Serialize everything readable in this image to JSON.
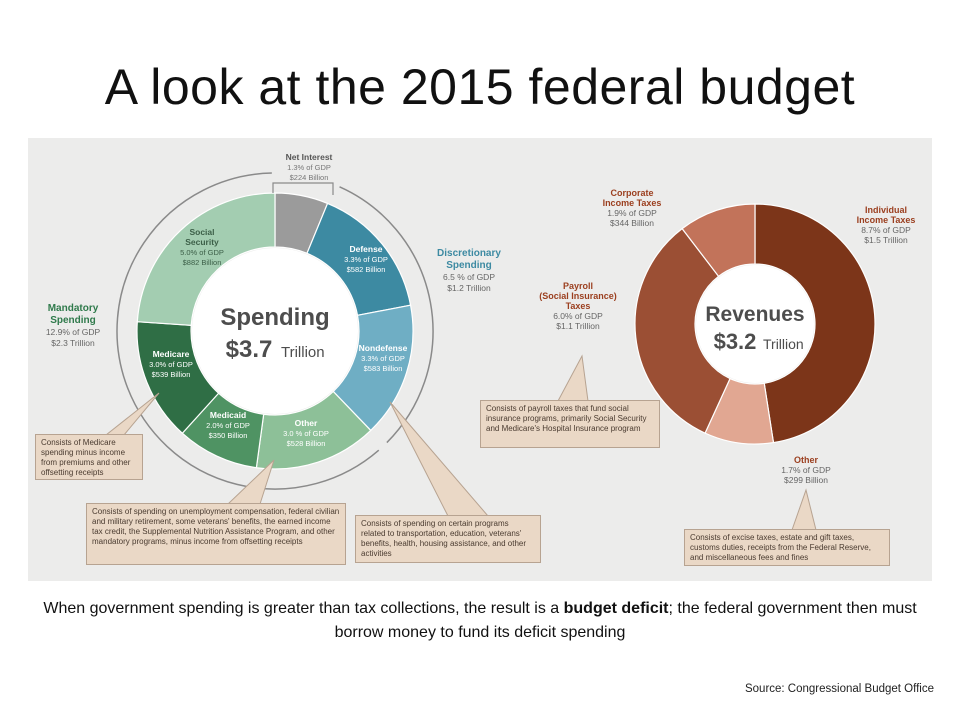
{
  "slide": {
    "title": "A look at the 2015 federal budget",
    "caption_before": "When government spending is greater than tax collections, the result is a ",
    "caption_bold1": "budget deficit",
    "caption_middle": "; the federal government then must borrow money to fund its deficit spending",
    "source": "Source: Congressional Budget Office"
  },
  "chart_data": [
    {
      "type": "pie",
      "center_title": "Spending",
      "center_amount": "$3.7",
      "center_unit": "Trillion",
      "unit": "% of GDP",
      "slices": [
        {
          "name": "Net Interest",
          "pct_gdp": 1.3,
          "line1": "1.3% of GDP",
          "line2": "$224 Billion",
          "color": "#9b9b9b"
        },
        {
          "name": "Defense",
          "pct_gdp": 3.3,
          "line1": "3.3% of GDP",
          "line2": "$582 Billion",
          "color": "#3d8aa2"
        },
        {
          "name": "Nondefense",
          "pct_gdp": 3.3,
          "line1": "3.3% of GDP",
          "line2": "$583 Billion",
          "color": "#6faec4"
        },
        {
          "name": "Other",
          "pct_gdp": 3.0,
          "line1": "3.0 % of GDP",
          "line2": "$528 Billion",
          "color": "#8dc098"
        },
        {
          "name": "Medicaid",
          "pct_gdp": 2.0,
          "line1": "2.0% of GDP",
          "line2": "$350 Billion",
          "color": "#4f9363"
        },
        {
          "name": "Medicare",
          "pct_gdp": 3.0,
          "line1": "3.0% of GDP",
          "line2": "$539 Billion",
          "color": "#2f6e45"
        },
        {
          "name": "Social Security",
          "pct_gdp": 5.0,
          "line1": "5.0% of GDP",
          "line2": "$882 Billion",
          "color": "#a3cdb1"
        }
      ],
      "groups": [
        {
          "name": "Discretionary Spending",
          "line1": "6.5 % of GDP",
          "line2": "$1.2 Trillion",
          "color": "#3d8aa2"
        },
        {
          "name": "Mandatory Spending",
          "line1": "12.9% of GDP",
          "line2": "$2.3 Trillion",
          "color": "#2f7a4b"
        }
      ],
      "notes": [
        "Consists of Medicare spending minus income from premiums and other offsetting receipts",
        "Consists of spending on unemployment compensation, federal civilian and military retirement, some veterans' benefits, the earned income tax credit, the Supplemental Nutrition Assistance Program, and other mandatory programs, minus income from offsetting receipts",
        "Consists of spending on certain programs related to transportation, education, veterans' benefits, health, housing assistance, and other activities"
      ]
    },
    {
      "type": "pie",
      "center_title": "Revenues",
      "center_amount": "$3.2",
      "center_unit": "Trillion",
      "unit": "% of GDP",
      "slices": [
        {
          "name": "Individual Income Taxes",
          "pct_gdp": 8.7,
          "line1": "8.7% of GDP",
          "line2": "$1.5 Trillion",
          "color": "#7c3519"
        },
        {
          "name": "Other",
          "pct_gdp": 1.7,
          "line1": "1.7% of GDP",
          "line2": "$299 Billion",
          "color": "#e1a792"
        },
        {
          "name": "Payroll (Social Insurance) Taxes",
          "pct_gdp": 6.0,
          "line1": "6.0% of GDP",
          "line2": "$1.1 Trillion",
          "color": "#9b4f34"
        },
        {
          "name": "Corporate Income Taxes",
          "pct_gdp": 1.9,
          "line1": "1.9% of GDP",
          "line2": "$344 Billion",
          "color": "#c2735a"
        }
      ],
      "notes": [
        "Consists of payroll taxes that fund social insurance programs, primarily Social Security and Medicare's Hospital Insurance program",
        "Consists of excise taxes, estate and gift taxes, customs duties, receipts from the Federal Reserve, and miscellaneous fees and fines"
      ]
    }
  ]
}
